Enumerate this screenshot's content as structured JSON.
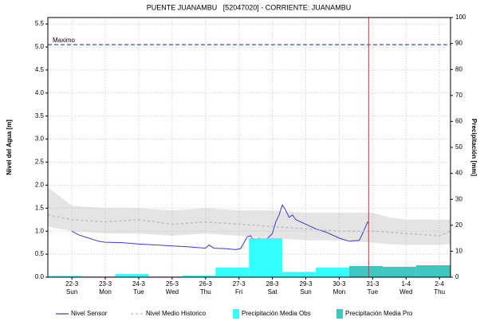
{
  "chart_data": {
    "type": "line",
    "title": "PUENTE JUANAMBU   [52047020] - CORRIENTE: JUANAMBU",
    "ylabel": "Nivel del Agua [m]",
    "y2label": "Precipitación [mm]",
    "xlim": [
      21.28,
      33.33
    ],
    "xticks": [
      {
        "value": 22,
        "label": "22-3"
      },
      {
        "value": 23,
        "label": "23-3"
      },
      {
        "value": 24,
        "label": "24-3"
      },
      {
        "value": 25,
        "label": "25-3"
      },
      {
        "value": 26,
        "label": "26-3"
      },
      {
        "value": 27,
        "label": "27-3"
      },
      {
        "value": 28,
        "label": "28-3"
      },
      {
        "value": 29,
        "label": "29-3"
      },
      {
        "value": 30,
        "label": "30-3"
      },
      {
        "value": 31,
        "label": "31-3"
      },
      {
        "value": 32,
        "label": "1-4"
      },
      {
        "value": 33,
        "label": "2-4"
      }
    ],
    "xtick_days": [
      "Sun",
      "Mon",
      "Tue",
      "Wed",
      "Thu",
      "Fri",
      "Sat",
      "Sun",
      "Mon",
      "Tue",
      "Wed",
      "Thu"
    ],
    "ylim": [
      0,
      5.64
    ],
    "yticks": [
      {
        "value": 0,
        "label": "0.0"
      },
      0.5,
      {
        "value": 1,
        "label": "1.0"
      },
      1.5,
      {
        "value": 2,
        "label": "2.0"
      },
      2.5,
      {
        "value": 3,
        "label": "3.0"
      },
      3.5,
      {
        "value": 4,
        "label": "4.0"
      },
      4.5,
      {
        "value": 5,
        "label": "5.0"
      },
      5.5
    ],
    "y2lim": [
      0,
      100
    ],
    "y2ticks": [
      0,
      10,
      20,
      30,
      40,
      50,
      60,
      70,
      80,
      90,
      100
    ],
    "grid": true,
    "range": {
      "color": "#e4e4e4",
      "x": [
        21.28,
        22,
        23,
        24,
        25,
        26,
        27,
        28,
        29,
        30,
        31,
        31.5,
        32,
        33,
        33.33
      ],
      "upper": [
        1.95,
        1.55,
        1.5,
        1.5,
        1.45,
        1.5,
        1.45,
        1.45,
        1.4,
        1.4,
        1.4,
        1.3,
        1.25,
        1.25,
        1.25
      ],
      "lower": [
        1.1,
        1.0,
        0.95,
        0.95,
        0.9,
        0.95,
        0.9,
        0.85,
        0.8,
        0.8,
        0.75,
        0.72,
        0.7,
        0.7,
        0.72
      ]
    },
    "series": [
      {
        "name": "Nivel Sensor",
        "color": "#3a3ad0",
        "style": "solid",
        "x": [
          22.0,
          22.2,
          22.5,
          22.8,
          23.0,
          23.5,
          24.0,
          24.5,
          25.0,
          25.5,
          26.0,
          26.1,
          26.25,
          26.6,
          26.9,
          27.05,
          27.15,
          27.25,
          27.35,
          27.45,
          27.6,
          27.8,
          28.0,
          28.1,
          28.2,
          28.3,
          28.4,
          28.5,
          28.6,
          28.7,
          29.0,
          29.3,
          29.6,
          30.0,
          30.3,
          30.6,
          30.7,
          30.85,
          30.9
        ],
        "values": [
          1.0,
          0.92,
          0.85,
          0.78,
          0.76,
          0.75,
          0.72,
          0.7,
          0.68,
          0.66,
          0.63,
          0.7,
          0.63,
          0.62,
          0.6,
          0.62,
          0.75,
          0.88,
          0.9,
          0.78,
          0.85,
          0.8,
          0.95,
          1.2,
          1.35,
          1.57,
          1.45,
          1.3,
          1.35,
          1.25,
          1.15,
          1.05,
          0.98,
          0.85,
          0.78,
          0.8,
          0.95,
          1.2,
          1.17
        ]
      },
      {
        "name": "Nivel Medio Historico",
        "color": "#bdbdbd",
        "style": "dashed",
        "x": [
          21.28,
          22,
          23,
          24,
          25,
          26,
          27,
          28,
          29,
          30,
          31,
          32,
          33,
          33.33
        ],
        "values": [
          1.35,
          1.25,
          1.2,
          1.25,
          1.15,
          1.2,
          1.15,
          1.1,
          1.05,
          1.0,
          1.0,
          0.95,
          0.9,
          1.0
        ]
      },
      {
        "name": "Precipitación Media Obs",
        "color": "#33ffff",
        "type": "bar",
        "axis": "y2",
        "bins": [
          21.3,
          22.3,
          23.3,
          24.3,
          25.3,
          26.3,
          27.3,
          28.3,
          29.3,
          30.3
        ],
        "values": [
          0.5,
          0.3,
          1.2,
          0.3,
          0.6,
          3.7,
          15,
          2,
          3.7
        ]
      },
      {
        "name": "Precipitación Media Pro",
        "color": "#40c8c0",
        "type": "bar",
        "axis": "y2",
        "bins": [
          30.3,
          31.3,
          32.3,
          33.33
        ],
        "values": [
          4.3,
          4,
          4.6
        ]
      }
    ],
    "reference_line": {
      "label": "Maximo",
      "value": 5.05,
      "color": "#5a6ea8"
    },
    "marker_x": {
      "value": 30.88,
      "color": "#e03030"
    }
  }
}
